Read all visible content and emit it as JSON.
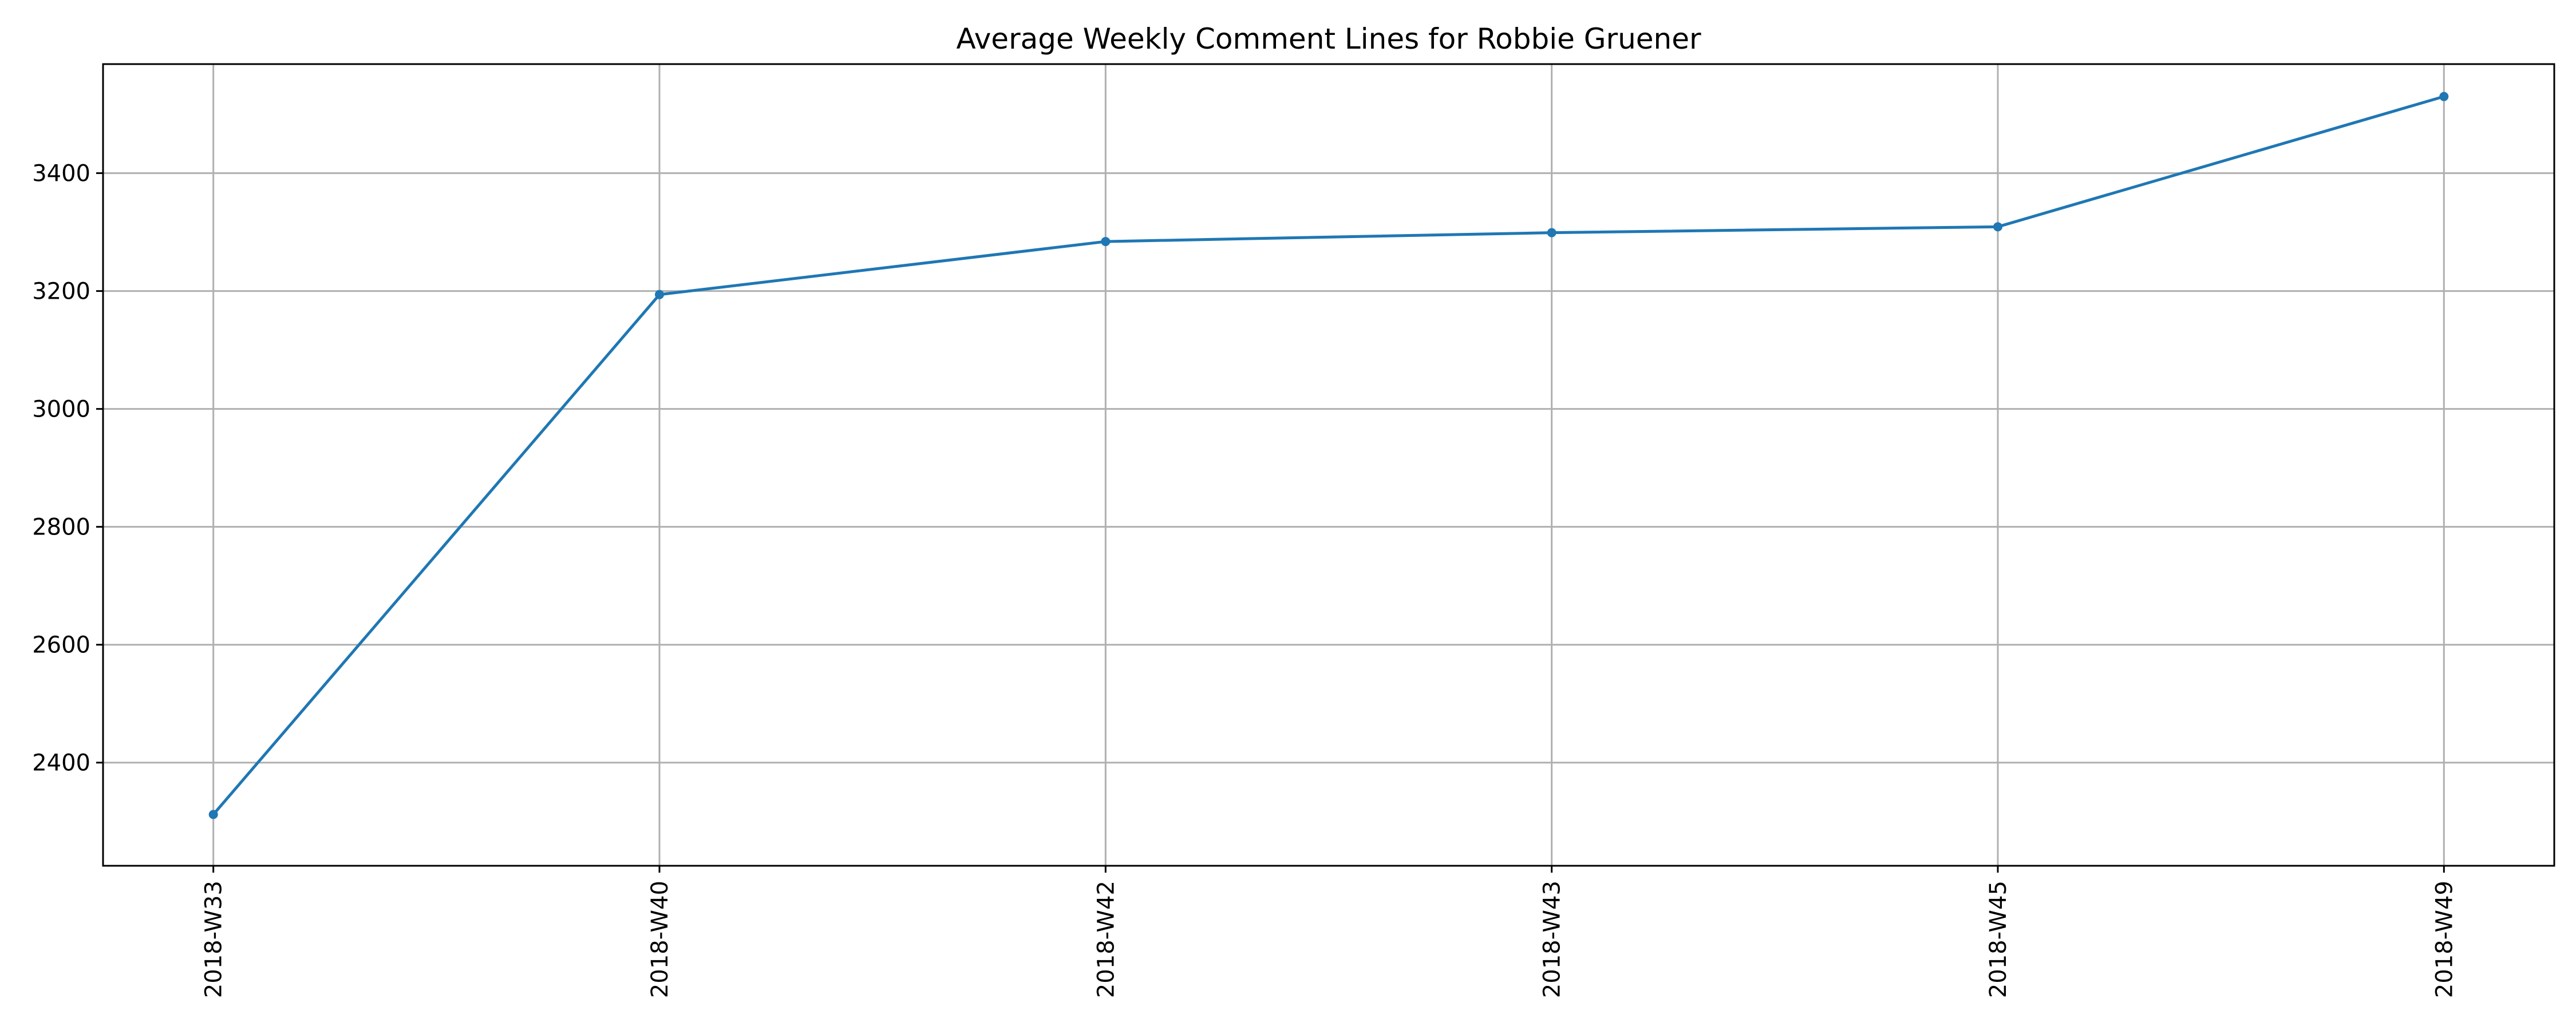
{
  "chart_data": {
    "type": "line",
    "title": "Average Weekly Comment Lines for Robbie Gruener",
    "xlabel": "",
    "ylabel": "",
    "categories": [
      "2018-W33",
      "2018-W40",
      "2018-W42",
      "2018-W43",
      "2018-W45",
      "2018-W49"
    ],
    "series": [
      {
        "values": [
          2312,
          3194,
          3284,
          3299,
          3309,
          3530
        ],
        "color": "#1f77b4",
        "marker": "circle"
      }
    ],
    "ylim": [
      2225,
      3585
    ],
    "yticks": [
      2400,
      2600,
      2800,
      3000,
      3200,
      3400
    ],
    "grid": true,
    "legend": "none"
  }
}
